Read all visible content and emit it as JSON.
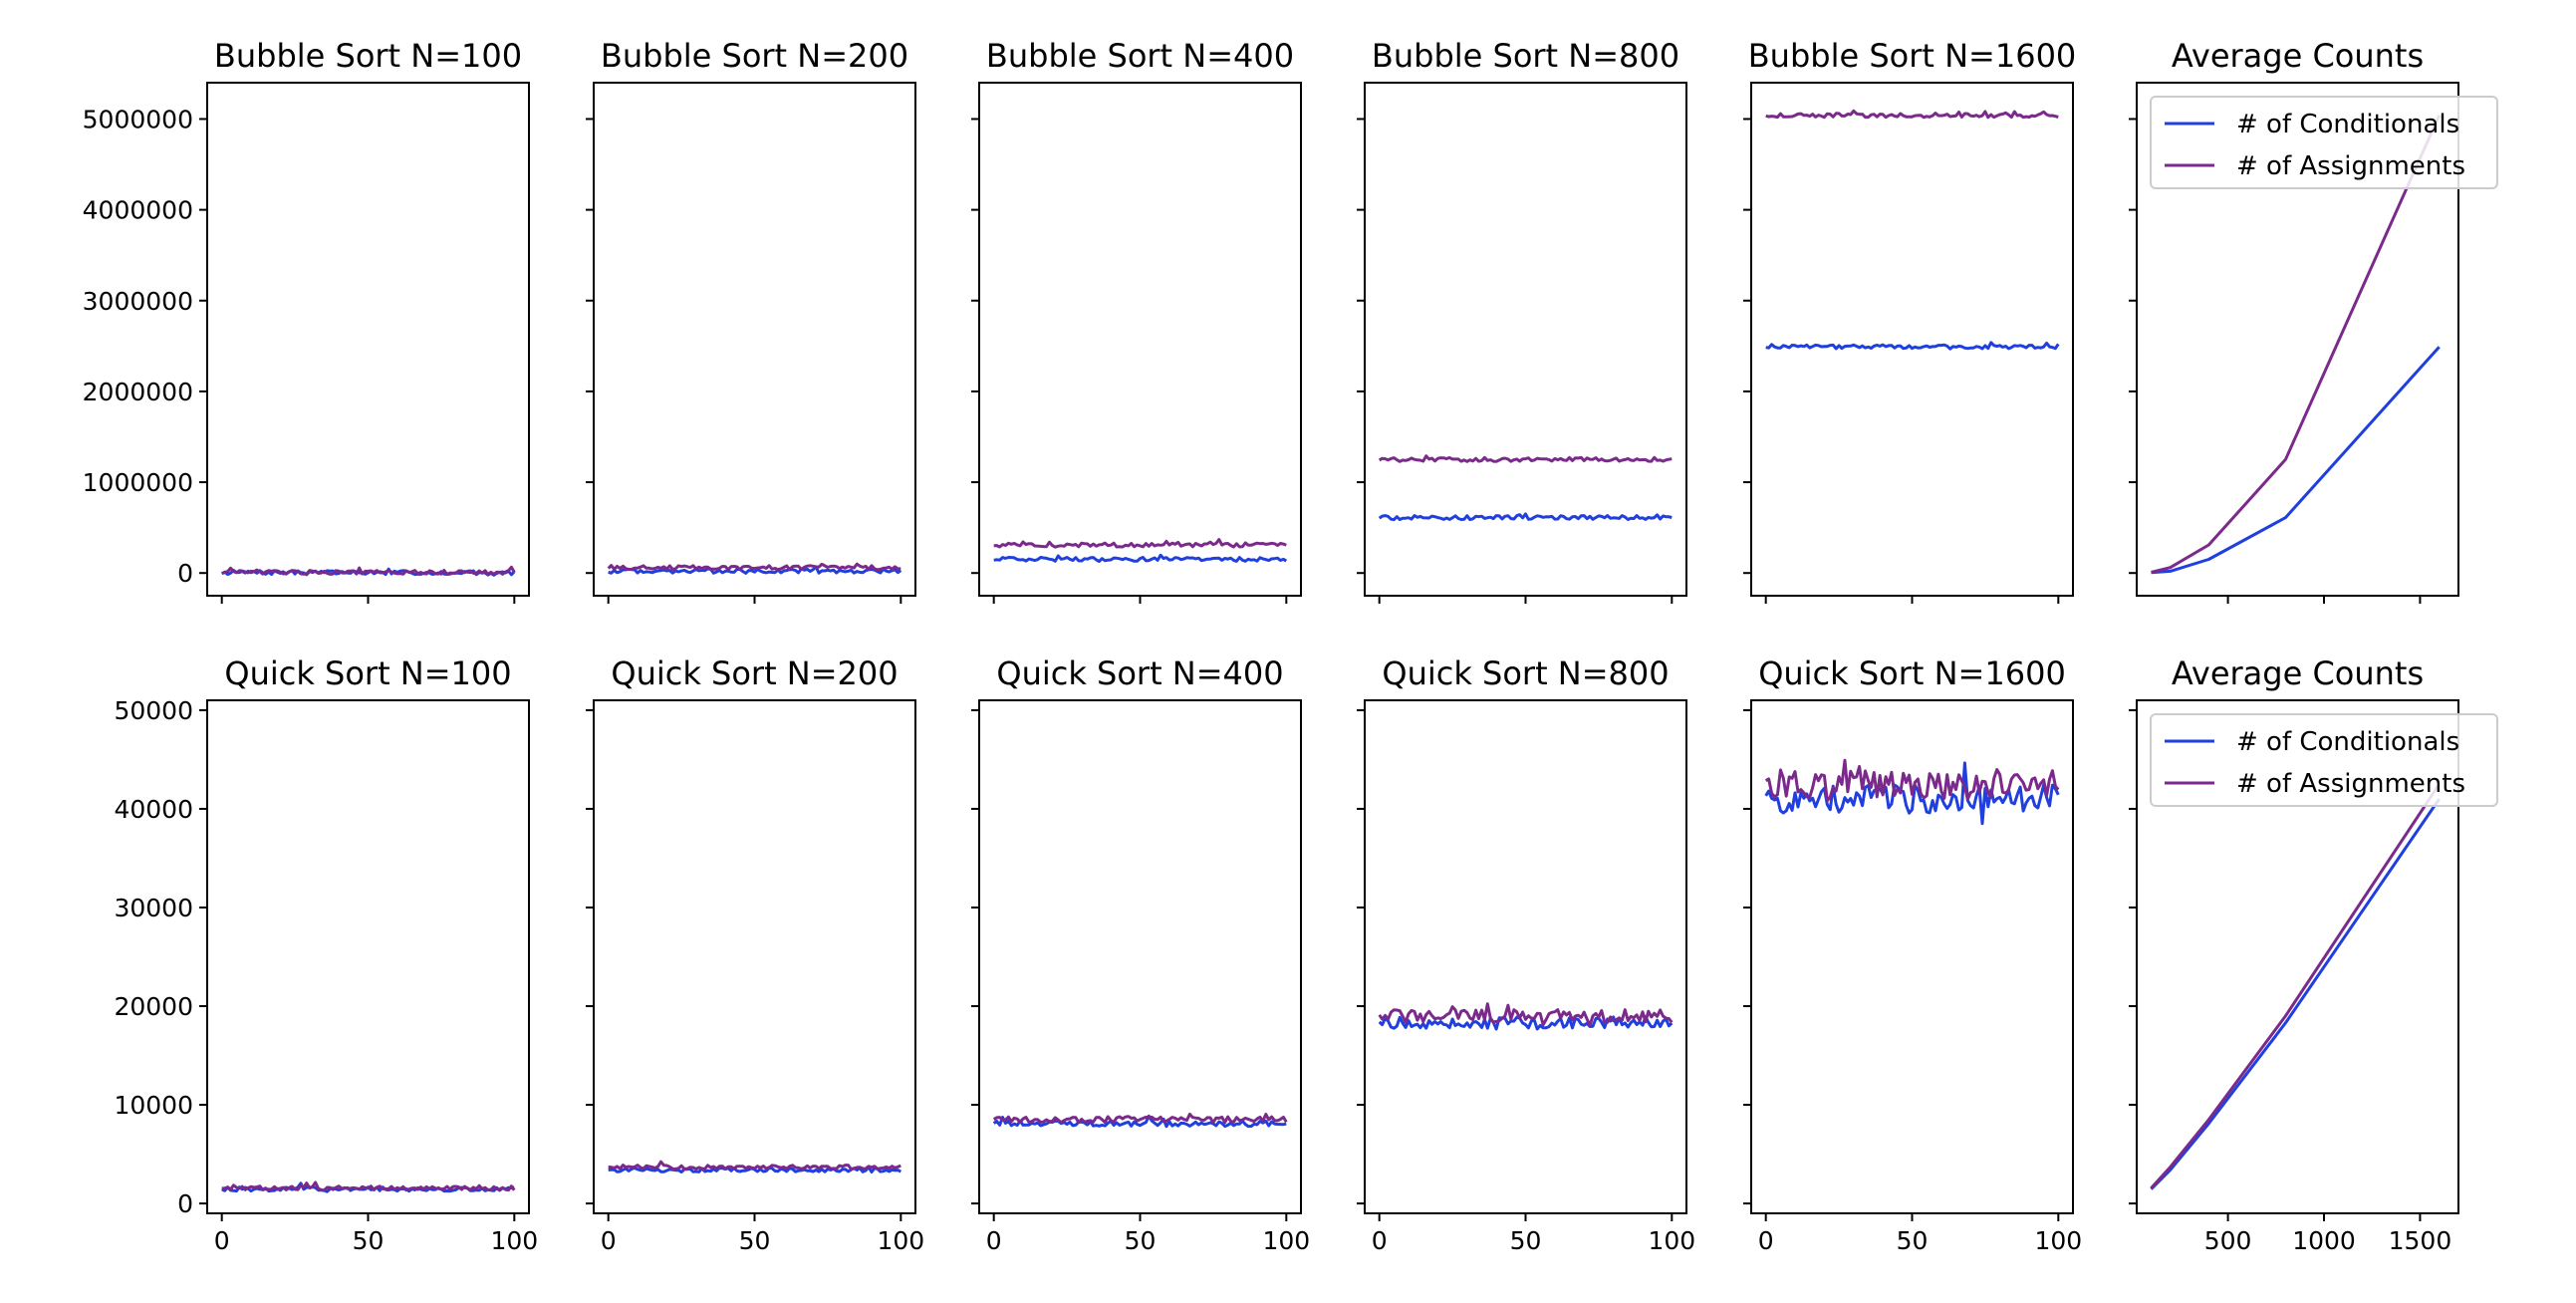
{
  "colors": {
    "conditionals": "#1f3fe0",
    "assignments": "#7b2a8c"
  },
  "legend": {
    "conditionals": "# of Conditionals",
    "assignments": "# of Assignments",
    "placement": "top-right"
  },
  "chart_data": [
    {
      "type": "line",
      "title": "Bubble Sort N=100",
      "xlim": [
        -5,
        105
      ],
      "ylim": [
        -250000,
        5400000
      ],
      "xticks": [
        0,
        50,
        100
      ],
      "yticks": [
        0,
        1000000,
        2000000,
        3000000,
        4000000,
        5000000
      ],
      "shows_xticklabels": false,
      "shows_yticklabels": true,
      "x": [
        0,
        100
      ],
      "series": [
        {
          "key": "conditionals",
          "values": [
            4950,
            4950
          ]
        },
        {
          "key": "assignments",
          "values": [
            7500,
            7500
          ]
        }
      ]
    },
    {
      "type": "line",
      "title": "Bubble Sort N=200",
      "xlim": [
        -5,
        105
      ],
      "ylim": [
        -250000,
        5400000
      ],
      "xticks": [
        0,
        50,
        100
      ],
      "yticks": [
        0,
        1000000,
        2000000,
        3000000,
        4000000,
        5000000
      ],
      "shows_xticklabels": false,
      "shows_yticklabels": false,
      "x": [
        0,
        100
      ],
      "series": [
        {
          "key": "conditionals",
          "values": [
            19900,
            19900
          ]
        },
        {
          "key": "assignments",
          "values": [
            60000,
            60000
          ]
        }
      ]
    },
    {
      "type": "line",
      "title": "Bubble Sort N=400",
      "xlim": [
        -5,
        105
      ],
      "ylim": [
        -250000,
        5400000
      ],
      "xticks": [
        0,
        50,
        100
      ],
      "yticks": [
        0,
        1000000,
        2000000,
        3000000,
        4000000,
        5000000
      ],
      "shows_xticklabels": false,
      "shows_yticklabels": false,
      "x": [
        0,
        100
      ],
      "series": [
        {
          "key": "conditionals",
          "values": [
            150000,
            150000
          ]
        },
        {
          "key": "assignments",
          "values": [
            310000,
            310000
          ]
        }
      ]
    },
    {
      "type": "line",
      "title": "Bubble Sort N=800",
      "xlim": [
        -5,
        105
      ],
      "ylim": [
        -250000,
        5400000
      ],
      "xticks": [
        0,
        50,
        100
      ],
      "yticks": [
        0,
        1000000,
        2000000,
        3000000,
        4000000,
        5000000
      ],
      "shows_xticklabels": false,
      "shows_yticklabels": false,
      "x": [
        0,
        100
      ],
      "series": [
        {
          "key": "conditionals",
          "values": [
            610000,
            610000
          ]
        },
        {
          "key": "assignments",
          "values": [
            1250000,
            1250000
          ]
        }
      ]
    },
    {
      "type": "line",
      "title": "Bubble Sort N=1600",
      "xlim": [
        -5,
        105
      ],
      "ylim": [
        -250000,
        5400000
      ],
      "xticks": [
        0,
        50,
        100
      ],
      "yticks": [
        0,
        1000000,
        2000000,
        3000000,
        4000000,
        5000000
      ],
      "shows_xticklabels": false,
      "shows_yticklabels": false,
      "x": [
        0,
        100
      ],
      "series": [
        {
          "key": "conditionals",
          "values": [
            2490000,
            2490000
          ]
        },
        {
          "key": "assignments",
          "values": [
            5040000,
            5040000
          ]
        }
      ]
    },
    {
      "type": "line",
      "title": "Average Counts",
      "xlim": [
        25,
        1700
      ],
      "ylim": [
        -250000,
        5400000
      ],
      "xticks": [
        500,
        1000,
        1500
      ],
      "yticks": [
        0,
        1000000,
        2000000,
        3000000,
        4000000,
        5000000
      ],
      "shows_xticklabels": false,
      "shows_yticklabels": false,
      "legend": true,
      "x": [
        100,
        200,
        400,
        800,
        1600
      ],
      "series": [
        {
          "key": "conditionals",
          "values": [
            4950,
            19900,
            150000,
            610000,
            2490000
          ]
        },
        {
          "key": "assignments",
          "values": [
            7500,
            60000,
            310000,
            1250000,
            5040000
          ]
        }
      ]
    },
    {
      "type": "line",
      "title": "Quick Sort N=100",
      "xlim": [
        -5,
        105
      ],
      "ylim": [
        -1000,
        51000
      ],
      "xticks": [
        0,
        50,
        100
      ],
      "yticks": [
        0,
        10000,
        20000,
        30000,
        40000,
        50000
      ],
      "shows_xticklabels": true,
      "shows_yticklabels": true,
      "x": [
        0,
        100
      ],
      "series": [
        {
          "key": "conditionals",
          "values": [
            1450,
            1450
          ]
        },
        {
          "key": "assignments",
          "values": [
            1550,
            1550
          ]
        }
      ]
    },
    {
      "type": "line",
      "title": "Quick Sort N=200",
      "xlim": [
        -5,
        105
      ],
      "ylim": [
        -1000,
        51000
      ],
      "xticks": [
        0,
        50,
        100
      ],
      "yticks": [
        0,
        10000,
        20000,
        30000,
        40000,
        50000
      ],
      "shows_xticklabels": true,
      "shows_yticklabels": false,
      "x": [
        0,
        100
      ],
      "series": [
        {
          "key": "conditionals",
          "values": [
            3400,
            3400
          ]
        },
        {
          "key": "assignments",
          "values": [
            3700,
            3700
          ]
        }
      ]
    },
    {
      "type": "line",
      "title": "Quick Sort N=400",
      "xlim": [
        -5,
        105
      ],
      "ylim": [
        -1000,
        51000
      ],
      "xticks": [
        0,
        50,
        100
      ],
      "yticks": [
        0,
        10000,
        20000,
        30000,
        40000,
        50000
      ],
      "shows_xticklabels": true,
      "shows_yticklabels": false,
      "x": [
        0,
        100
      ],
      "series": [
        {
          "key": "conditionals",
          "values": [
            8100,
            8100
          ]
        },
        {
          "key": "assignments",
          "values": [
            8500,
            8500
          ]
        }
      ]
    },
    {
      "type": "line",
      "title": "Quick Sort N=800",
      "xlim": [
        -5,
        105
      ],
      "ylim": [
        -1000,
        51000
      ],
      "xticks": [
        0,
        50,
        100
      ],
      "yticks": [
        0,
        10000,
        20000,
        30000,
        40000,
        50000
      ],
      "shows_xticklabels": true,
      "shows_yticklabels": false,
      "x": [
        0,
        100
      ],
      "series": [
        {
          "key": "conditionals",
          "values": [
            18300,
            18300
          ]
        },
        {
          "key": "assignments",
          "values": [
            19000,
            19000
          ]
        }
      ]
    },
    {
      "type": "line",
      "title": "Quick Sort N=1600",
      "xlim": [
        -5,
        105
      ],
      "ylim": [
        -1000,
        51000
      ],
      "xticks": [
        0,
        50,
        100
      ],
      "yticks": [
        0,
        10000,
        20000,
        30000,
        40000,
        50000
      ],
      "shows_xticklabels": true,
      "shows_yticklabels": false,
      "x": [
        0,
        100
      ],
      "series": [
        {
          "key": "conditionals",
          "values": [
            41000,
            41000
          ]
        },
        {
          "key": "assignments",
          "values": [
            42500,
            42500
          ]
        }
      ]
    },
    {
      "type": "line",
      "title": "Average Counts",
      "xlim": [
        25,
        1700
      ],
      "ylim": [
        -1000,
        51000
      ],
      "xticks": [
        500,
        1000,
        1500
      ],
      "yticks": [
        0,
        10000,
        20000,
        30000,
        40000,
        50000
      ],
      "shows_xticklabels": true,
      "shows_yticklabels": false,
      "legend": true,
      "x": [
        100,
        200,
        400,
        800,
        1600
      ],
      "series": [
        {
          "key": "conditionals",
          "values": [
            1450,
            3400,
            8100,
            18300,
            41000
          ]
        },
        {
          "key": "assignments",
          "values": [
            1550,
            3700,
            8500,
            19000,
            42500
          ]
        }
      ]
    }
  ]
}
